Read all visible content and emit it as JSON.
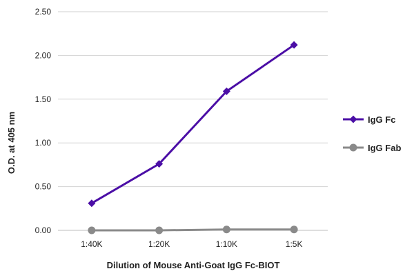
{
  "chart_data": {
    "type": "line",
    "categories": [
      "1:40K",
      "1:20K",
      "1:10K",
      "1:5K"
    ],
    "yticks": [
      "0.00",
      "0.50",
      "1.00",
      "1.50",
      "2.00",
      "2.50"
    ],
    "ylim": [
      0,
      2.5
    ],
    "xlabel": "Dilution of Mouse Anti-Goat IgG Fc-BIOT",
    "ylabel": "O.D. at 405 nm",
    "grid": "horizontal",
    "legend_position": "right",
    "series": [
      {
        "name": "IgG Fc",
        "values": [
          0.31,
          0.76,
          1.59,
          2.12
        ],
        "color": "#4b0ea6",
        "marker": "diamond"
      },
      {
        "name": "IgG Fab",
        "values": [
          0.0,
          0.0,
          0.01,
          0.01
        ],
        "color": "#8a8a8a",
        "marker": "circle"
      }
    ]
  }
}
